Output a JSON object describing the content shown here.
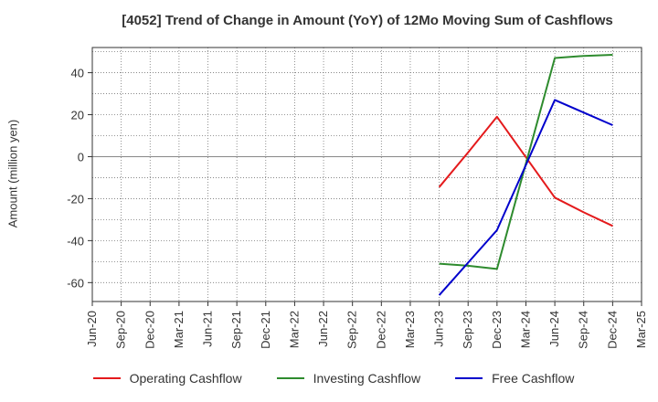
{
  "chart_data": {
    "type": "line",
    "title": "[4052]  Trend of Change in Amount (YoY) of 12Mo Moving Sum of Cashflows",
    "ylabel": "Amount (million yen)",
    "xlabel": "",
    "x": [
      "Jun-20",
      "Sep-20",
      "Dec-20",
      "Mar-21",
      "Jun-21",
      "Sep-21",
      "Dec-21",
      "Mar-22",
      "Jun-22",
      "Sep-22",
      "Dec-22",
      "Mar-23",
      "Jun-23",
      "Sep-23",
      "Dec-23",
      "Mar-24",
      "Jun-24",
      "Sep-24",
      "Dec-24",
      "Mar-25"
    ],
    "ylim": [
      -69,
      52
    ],
    "yticks": [
      40,
      20,
      0,
      -20,
      -40,
      -60
    ],
    "grid": true,
    "legend_position": "bottom",
    "series": [
      {
        "name": "Operating Cashflow",
        "color": "#e41a1c",
        "values": [
          null,
          null,
          null,
          null,
          null,
          null,
          null,
          null,
          null,
          null,
          null,
          null,
          -14.5,
          2,
          19,
          null,
          -19.5,
          -26.5,
          -33,
          null
        ]
      },
      {
        "name": "Investing Cashflow",
        "color": "#2e8b2e",
        "values": [
          null,
          null,
          null,
          null,
          null,
          null,
          null,
          null,
          null,
          null,
          null,
          null,
          -51,
          -52,
          -53.5,
          null,
          47,
          48,
          48.5,
          null
        ]
      },
      {
        "name": "Free Cashflow",
        "color": "#0000cc",
        "values": [
          null,
          null,
          null,
          null,
          null,
          null,
          null,
          null,
          null,
          null,
          null,
          null,
          -66,
          -50.5,
          -35,
          null,
          27,
          21,
          15,
          null
        ]
      }
    ]
  }
}
